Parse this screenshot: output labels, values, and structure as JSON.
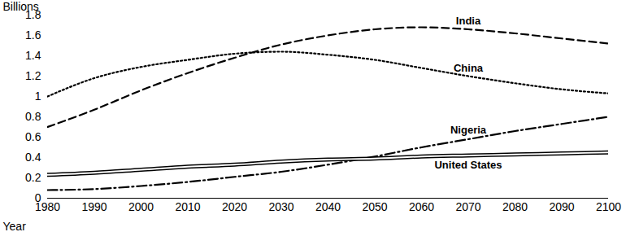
{
  "chart_data": {
    "type": "line",
    "x_label": "Year",
    "y_label": "Billions",
    "x": [
      1980,
      1990,
      2000,
      2010,
      2020,
      2030,
      2040,
      2050,
      2060,
      2070,
      2080,
      2090,
      2100
    ],
    "series": [
      {
        "name": "India",
        "color": "#000000",
        "line_style": "dashed",
        "values": [
          0.7,
          0.87,
          1.06,
          1.23,
          1.38,
          1.51,
          1.6,
          1.66,
          1.68,
          1.66,
          1.62,
          1.57,
          1.52
        ]
      },
      {
        "name": "China",
        "color": "#000000",
        "line_style": "dotted",
        "values": [
          1.0,
          1.18,
          1.29,
          1.36,
          1.42,
          1.44,
          1.41,
          1.36,
          1.28,
          1.2,
          1.13,
          1.07,
          1.03
        ]
      },
      {
        "name": "Nigeria",
        "color": "#000000",
        "line_style": "dashdot",
        "values": [
          0.08,
          0.09,
          0.12,
          0.16,
          0.21,
          0.26,
          0.33,
          0.41,
          0.5,
          0.58,
          0.66,
          0.73,
          0.8
        ]
      },
      {
        "name": "United States",
        "color": "#000000",
        "line_style": "double",
        "values": [
          0.23,
          0.25,
          0.28,
          0.31,
          0.33,
          0.36,
          0.38,
          0.39,
          0.41,
          0.42,
          0.43,
          0.44,
          0.45
        ]
      }
    ],
    "xlim": [
      1980,
      2100
    ],
    "xticks": [
      1980,
      1990,
      2000,
      2010,
      2020,
      2030,
      2040,
      2050,
      2060,
      2070,
      2080,
      2090,
      2100
    ],
    "ylim": [
      0,
      1.8
    ],
    "yticks": [
      0,
      0.2,
      0.4,
      0.6,
      0.8,
      1,
      1.2,
      1.4,
      1.6,
      1.8
    ],
    "grid": false
  }
}
